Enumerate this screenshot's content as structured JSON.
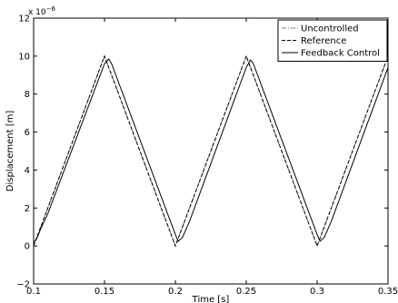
{
  "chart_data": {
    "type": "line",
    "title": "",
    "xlabel": "Time [s]",
    "ylabel": "Displacement [m]",
    "y_multiplier_label": "x 10",
    "y_multiplier_exponent": "−6",
    "xlim": [
      0.1,
      0.35
    ],
    "ylim": [
      -2,
      12
    ],
    "x_ticks": [
      0.1,
      0.15,
      0.2,
      0.25,
      0.3,
      0.35
    ],
    "x_tick_labels": [
      "0.1",
      "0.15",
      "0.2",
      "0.25",
      "0.3",
      "0.35"
    ],
    "y_ticks": [
      -2,
      0,
      2,
      4,
      6,
      8,
      10,
      12
    ],
    "y_tick_labels": [
      "−2",
      "0",
      "2",
      "4",
      "6",
      "8",
      "10",
      "12"
    ],
    "grid": false,
    "legend_position": "top-right",
    "series": [
      {
        "name": "Uncontrolled",
        "style": "dashdot",
        "color": "#7f7f7f",
        "x": [
          0.1,
          0.15,
          0.2,
          0.25,
          0.3,
          0.35
        ],
        "y": [
          0,
          10,
          0,
          10,
          0,
          10
        ]
      },
      {
        "name": "Reference",
        "style": "dashed",
        "color": "#000000",
        "x": [
          0.1,
          0.15,
          0.2,
          0.25,
          0.3,
          0.35
        ],
        "y": [
          0,
          10,
          0,
          10,
          0,
          10
        ]
      },
      {
        "name": "Feedback Control",
        "style": "solid",
        "color": "#000000",
        "x": [
          0.1,
          0.102,
          0.105,
          0.11,
          0.15,
          0.153,
          0.155,
          0.2,
          0.202,
          0.205,
          0.21,
          0.25,
          0.253,
          0.255,
          0.3,
          0.302,
          0.305,
          0.31,
          0.35
        ],
        "y": [
          0.2,
          0.35,
          0.9,
          1.7,
          9.6,
          9.85,
          9.6,
          0.6,
          0.25,
          0.45,
          1.3,
          9.4,
          9.8,
          9.6,
          0.6,
          0.25,
          0.45,
          1.3,
          9.4
        ]
      }
    ]
  }
}
